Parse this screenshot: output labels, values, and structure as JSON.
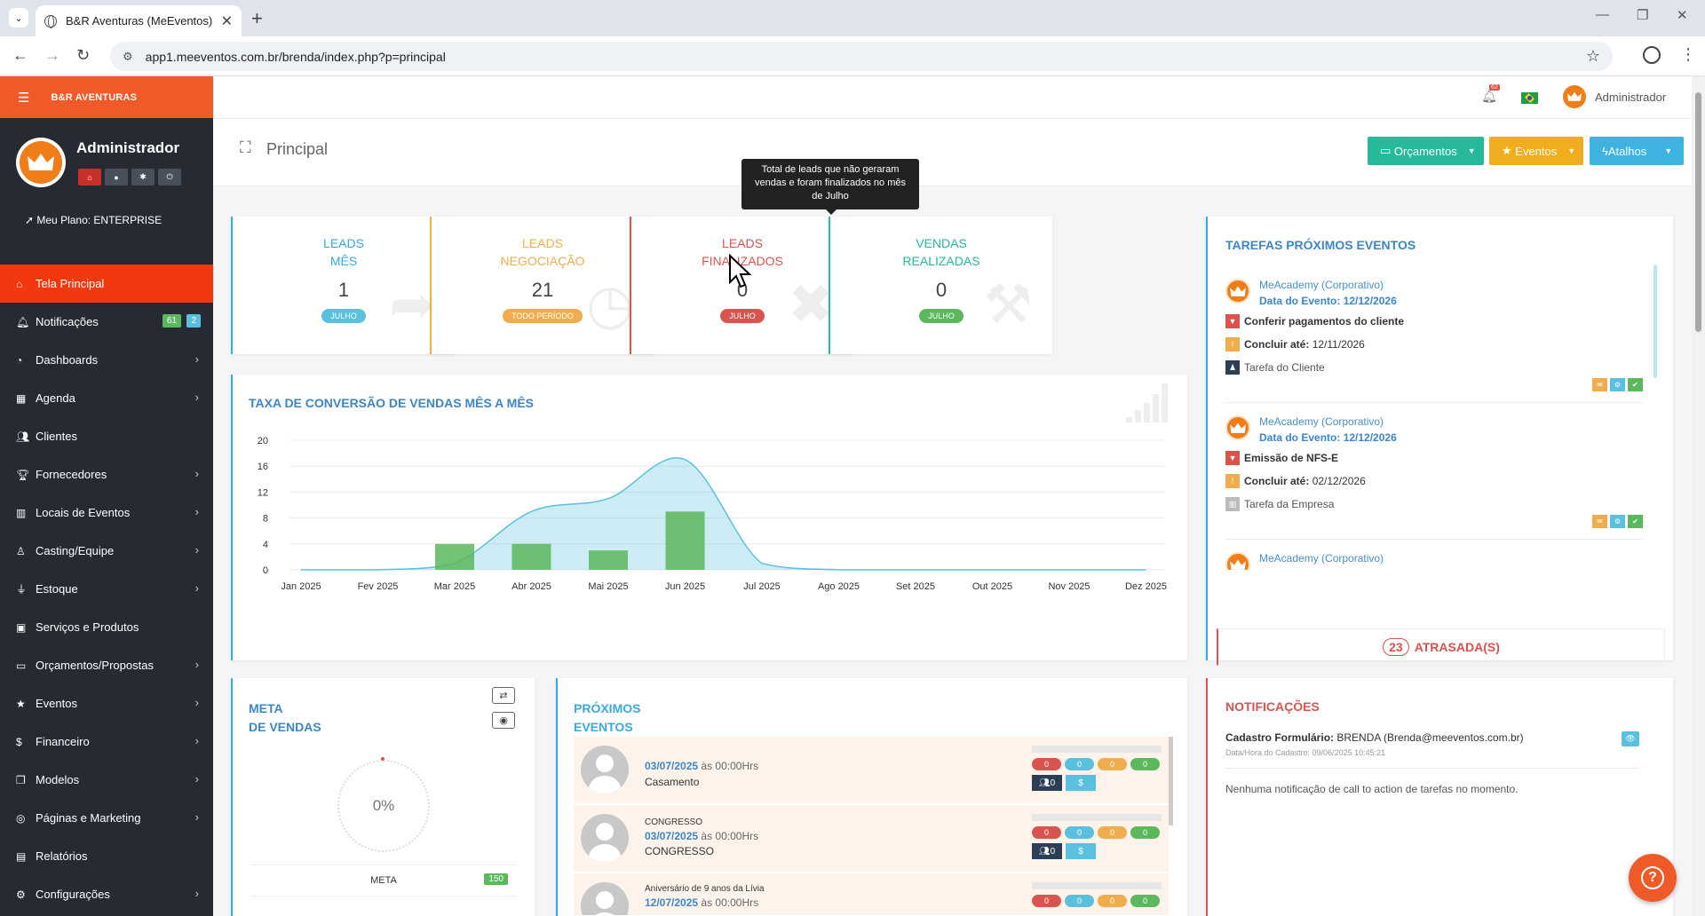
{
  "browser": {
    "tab_title": "B&R Aventuras (MeEventos)",
    "url": "app1.meeventos.com.br/brenda/index.php?p=principal"
  },
  "sidebar": {
    "brand": "B&R AVENTURAS",
    "user_name": "Administrador",
    "plan": "Meu Plano: ENTERPRISE",
    "items": [
      {
        "label": "Tela Principal",
        "icon": "home-icon",
        "active": true,
        "chevron": false
      },
      {
        "label": "Notificações",
        "icon": "bell-icon",
        "badge_green": "61",
        "badge_blue": "2",
        "chevron": false
      },
      {
        "label": "Dashboards",
        "icon": "dashboard-icon",
        "chevron": true
      },
      {
        "label": "Agenda",
        "icon": "calendar-icon",
        "chevron": true
      },
      {
        "label": "Clientes",
        "icon": "users-icon",
        "chevron": false
      },
      {
        "label": "Fornecedores",
        "icon": "trophy-icon",
        "chevron": true
      },
      {
        "label": "Locais de Eventos",
        "icon": "building-icon",
        "chevron": true
      },
      {
        "label": "Casting/Equipe",
        "icon": "person-icon",
        "chevron": true
      },
      {
        "label": "Estoque",
        "icon": "filter-icon",
        "chevron": true
      },
      {
        "label": "Serviços e Produtos",
        "icon": "box-icon",
        "chevron": false
      },
      {
        "label": "Orçamentos/Propostas",
        "icon": "monitor-icon",
        "chevron": true
      },
      {
        "label": "Eventos",
        "icon": "star-icon",
        "chevron": true
      },
      {
        "label": "Financeiro",
        "icon": "dollar-icon",
        "chevron": true
      },
      {
        "label": "Modelos",
        "icon": "copy-icon",
        "chevron": true
      },
      {
        "label": "Páginas e Marketing",
        "icon": "dribbble-icon",
        "chevron": true
      },
      {
        "label": "Relatórios",
        "icon": "chart-icon",
        "chevron": false
      },
      {
        "label": "Configurações",
        "icon": "gear-icon",
        "chevron": true
      }
    ]
  },
  "header": {
    "notif_count": "62",
    "user": "Administrador"
  },
  "page": {
    "title": "Principal",
    "btn_orcamentos": "Orçamentos",
    "btn_eventos": "Eventos",
    "btn_atalhos": "Atalhos"
  },
  "tooltip": "Total de leads que não geraram vendas e foram finalizados no mês de Julho",
  "kpis": [
    {
      "title1": "LEADS",
      "title2": "MÊS",
      "value": "1",
      "pill": "JULHO",
      "color": "#3aa9df",
      "pill_color": "#5bc0de",
      "icon": "share-icon",
      "glyph": "➦"
    },
    {
      "title1": "LEADS",
      "title2": "NEGOCIAÇÃO",
      "value": "21",
      "pill": "TODO PERÍODO",
      "color": "#f0ad4e",
      "pill_color": "#f0ad4e",
      "icon": "clock-icon",
      "glyph": "◷"
    },
    {
      "title1": "LEADS",
      "title2": "FINALIZADOS",
      "value": "0",
      "pill": "JULHO",
      "color": "#d9534f",
      "pill_color": "#d9534f",
      "icon": "times-circle-icon",
      "glyph": "✖"
    },
    {
      "title1": "VENDAS",
      "title2": "REALIZADAS",
      "value": "0",
      "pill": "JULHO",
      "color": "#26b99a",
      "pill_color": "#5cb85c",
      "icon": "gavel-icon",
      "glyph": "⚒"
    }
  ],
  "chart_data": {
    "type": "bar",
    "title": "TAXA DE CONVERSÃO DE VENDAS MÊS A MÊS",
    "categories": [
      "Jan 2025",
      "Fev 2025",
      "Mar 2025",
      "Abr 2025",
      "Mai 2025",
      "Jun 2025",
      "Jul 2025",
      "Ago 2025",
      "Set 2025",
      "Out 2025",
      "Nov 2025",
      "Dez 2025"
    ],
    "series": [
      {
        "type": "area",
        "values": [
          0,
          0,
          1,
          9,
          11,
          17,
          1,
          0,
          0,
          0,
          0,
          0
        ],
        "color": "#5bc0de"
      },
      {
        "type": "bar",
        "values": [
          0,
          0,
          4,
          4,
          3,
          9,
          0,
          0,
          0,
          0,
          0,
          0
        ],
        "color": "#5cb85c"
      }
    ],
    "yticks": [
      "0",
      "4",
      "8",
      "12",
      "16",
      "20"
    ],
    "ylim": [
      0,
      20
    ],
    "grid": true
  },
  "tasks": {
    "title": "TAREFAS PRÓXIMOS EVENTOS",
    "items": [
      {
        "company": "MeAcademy (Corporativo)",
        "date_label": "Data do Evento:",
        "date": "12/12/2026",
        "task": "Conferir pagamentos do cliente",
        "due_label": "Concluir até:",
        "due": "12/11/2026",
        "type": "Tarefa do Cliente"
      },
      {
        "company": "MeAcademy (Corporativo)",
        "date_label": "Data do Evento:",
        "date": "12/12/2026",
        "task": "Emissão de NFS-E",
        "due_label": "Concluir até:",
        "due": "02/12/2026",
        "type": "Tarefa da Empresa"
      },
      {
        "company": "MeAcademy (Corporativo)"
      }
    ],
    "overdue_count": "23",
    "overdue_label": "ATRASADA(S)"
  },
  "meta": {
    "title1": "META",
    "title2": "DE VENDAS",
    "percent": "0%",
    "row_label": "META",
    "row_value": "150"
  },
  "events": {
    "title1": "PRÓXIMOS",
    "title2": "EVENTOS",
    "items": [
      {
        "subtitle": "",
        "date": "03/07/2025",
        "time": "às 00:00Hrs",
        "name": "Casamento",
        "pills": [
          "0",
          "0",
          "0",
          "0"
        ],
        "people": "0",
        "money": "$"
      },
      {
        "subtitle": "CONGRESSO",
        "date": "03/07/2025",
        "time": "às 00:00Hrs",
        "name": "CONGRESSO",
        "pills": [
          "0",
          "0",
          "0",
          "0"
        ],
        "people": "0",
        "money": "$"
      },
      {
        "subtitle": "Aniversário de 9 anos da Lívia",
        "date": "12/07/2025",
        "time": "às 00:00Hrs",
        "name": "",
        "pills": [
          "0",
          "0",
          "0",
          "0"
        ],
        "people": "",
        "money": ""
      }
    ]
  },
  "notifications": {
    "title": "NOTIFICAÇÕES",
    "line_label": "Cadastro Formulário:",
    "line_value": "BRENDA (Brenda@meeventos.com.br)",
    "meta": "Data/Hora do Cadastro: 09/06/2025 10:45:21",
    "empty": "Nenhuma notificação de call to action de tarefas no momento."
  }
}
